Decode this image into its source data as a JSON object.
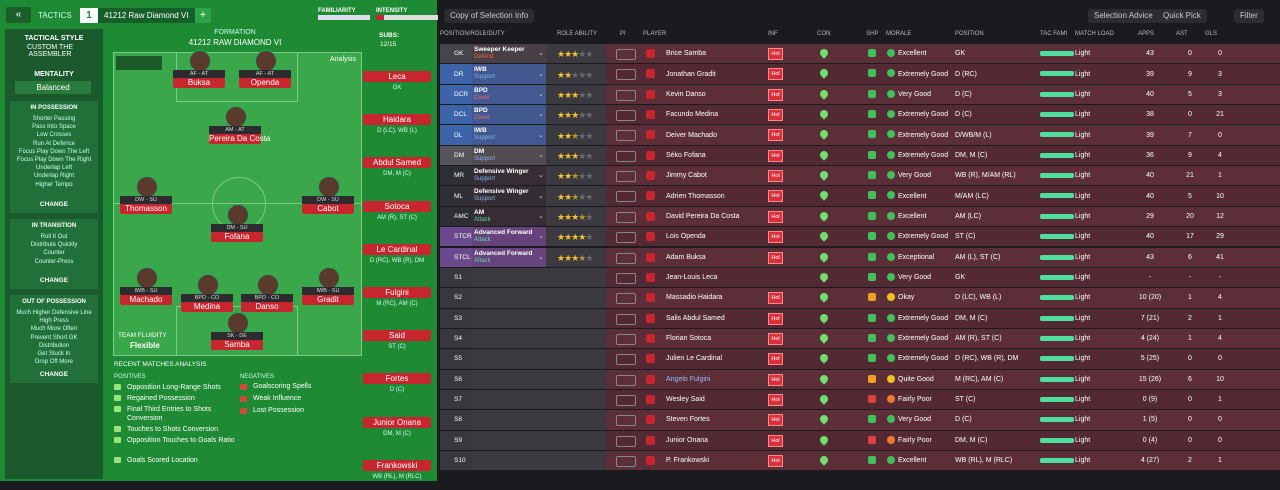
{
  "header": {
    "tactics": "TACTICS",
    "slot": "1",
    "tactic_name": "41212 Raw Diamond VI",
    "familiarity": "FAMILIARITY",
    "intensity": "INTENSITY"
  },
  "sidebar": {
    "style_label": "TACTICAL STYLE",
    "style_name": "CUSTOM THE ASSEMBLER",
    "mentality_label": "MENTALITY",
    "mentality": "Balanced",
    "in_possession": {
      "title": "IN POSSESSION",
      "items": [
        "Shorter Passing",
        "Pass Into Space",
        "Low Crosses",
        "Run At Defence",
        "Focus Play Down The Left",
        "Focus Play Down The Right",
        "Underlap Left",
        "Underlap Right",
        "Higher Tempo"
      ],
      "change": "CHANGE"
    },
    "in_transition": {
      "title": "IN TRANSITION",
      "items": [
        "Roll It Out",
        "Distribute Quickly",
        "Counter",
        "Counter-Press"
      ],
      "change": "CHANGE"
    },
    "out_of_possession": {
      "title": "OUT OF POSSESSION",
      "items": [
        "Much Higher Defensive Line",
        "High Press",
        "Much More Often",
        "Prevent Short GK",
        "Distribution",
        "Get Stuck In",
        "Drop Off More"
      ],
      "change": "CHANGE"
    }
  },
  "pitch": {
    "formation_label": "FORMATION",
    "formation_name": "41212 RAW DIAMOND VI",
    "analysis": "Analysis",
    "fluidity_label": "TEAM FLUIDITY",
    "fluidity": "Flexible",
    "players": [
      {
        "role": "AF - AT",
        "name": "Buksa"
      },
      {
        "role": "AF - AT",
        "name": "Openda"
      },
      {
        "role": "AM - AT",
        "name": "Pereira Da Costa"
      },
      {
        "role": "DW - SU",
        "name": "Thomasson"
      },
      {
        "role": "DW - SU",
        "name": "Cabot"
      },
      {
        "role": "DM - SU",
        "name": "Fofana"
      },
      {
        "role": "IWB - SU",
        "name": "Machado"
      },
      {
        "role": "BPD - CO",
        "name": "Medina"
      },
      {
        "role": "BPD - CO",
        "name": "Danso"
      },
      {
        "role": "IWB - SU",
        "name": "Gradit"
      },
      {
        "role": "SK - DE",
        "name": "Samba"
      }
    ]
  },
  "subs": {
    "label": "SUBS:",
    "count": "12/15",
    "players": [
      {
        "name": "Leca",
        "position": "GK"
      },
      {
        "name": "Haidara",
        "position": "D (LC), WB (L)"
      },
      {
        "name": "Abdul Samed",
        "position": "DM, M (C)"
      },
      {
        "name": "Sotoca",
        "position": "AM (R), ST (C)"
      },
      {
        "name": "Le Cardinal",
        "position": "D (RC), WB (R), DM"
      },
      {
        "name": "Fulgini",
        "position": "M (RC), AM (C)"
      },
      {
        "name": "Said",
        "position": "ST (C)"
      },
      {
        "name": "Fortes",
        "position": "D (C)"
      },
      {
        "name": "Junior Onana",
        "position": "DM, M (C)"
      },
      {
        "name": "Frankowski",
        "position": "WB (RL), M (RLC)"
      }
    ]
  },
  "analysis": {
    "title": "RECENT MATCHES ANALYSIS",
    "positives_label": "POSITIVES",
    "positives": [
      "Opposition Long-Range Shots",
      "Regained Possession",
      "Final Third Entries to Shots Conversion",
      "Touches to Shots Conversion",
      "Opposition Touches to Goals Ratio",
      "Goals Scored Location"
    ],
    "negatives_label": "NEGATIVES",
    "negatives": [
      "Goalscoring Spells",
      "Weak Influence",
      "Lost Possession"
    ]
  },
  "toolbar": {
    "view": "Copy of Selection Info",
    "advice": "Selection Advice",
    "quick_pick": "Quick Pick",
    "filter": "Filter"
  },
  "table": {
    "columns": [
      "POSITION/ROLE/DUTY",
      "ROLE ABILITY",
      "PI",
      "PLAYER",
      "INF",
      "CON",
      "SHP",
      "MORALE",
      "POSITION",
      "TAC FAMI",
      "MATCH LOAD",
      "APPS",
      "AST",
      "GLS"
    ],
    "rows": [
      {
        "pos": "GK",
        "role": "Sweeper Keeper",
        "duty": "Defend",
        "stars": 3,
        "player": "Brice Samba",
        "inf": "Hol",
        "morale": "Excellent",
        "position": "GK",
        "load": "Light",
        "apps": "43",
        "ast": "0",
        "gls": "0"
      },
      {
        "pos": "DR",
        "role": "IWB",
        "duty": "Support",
        "stars": 2,
        "player": "Jonathan Gradit",
        "inf": "Hol",
        "morale": "Extremely Good",
        "position": "D (RC)",
        "load": "Light",
        "apps": "39",
        "ast": "9",
        "gls": "3"
      },
      {
        "pos": "DCR",
        "role": "BPD",
        "duty": "Cover",
        "stars": 3,
        "player": "Kevin Danso",
        "inf": "Hol",
        "morale": "Very Good",
        "position": "D (C)",
        "load": "Light",
        "apps": "40",
        "ast": "5",
        "gls": "3"
      },
      {
        "pos": "DCL",
        "role": "BPD",
        "duty": "Cover",
        "stars": 3,
        "player": "Facundo Medina",
        "inf": "Hol",
        "morale": "Extremely Good",
        "position": "D (C)",
        "load": "Light",
        "apps": "38",
        "ast": "0",
        "gls": "21"
      },
      {
        "pos": "DL",
        "role": "IWB",
        "duty": "Support",
        "stars": 2.5,
        "player": "Deiver Machado",
        "inf": "Hol",
        "morale": "Extremely Good",
        "position": "D/WB/M (L)",
        "load": "Light",
        "apps": "39",
        "ast": "7",
        "gls": "0"
      },
      {
        "pos": "DM",
        "role": "DM",
        "duty": "Support",
        "stars": 3,
        "player": "Séko Fofana",
        "inf": "Hol",
        "morale": "Extremely Good",
        "position": "DM, M (C)",
        "load": "Light",
        "apps": "36",
        "ast": "9",
        "gls": "4"
      },
      {
        "pos": "MR",
        "role": "Defensive Winger",
        "duty": "Support",
        "stars": 2.5,
        "player": "Jimmy Cabot",
        "inf": "Hol",
        "morale": "Very Good",
        "position": "WB (R), M/AM (RL)",
        "load": "Light",
        "apps": "40",
        "ast": "21",
        "gls": "1"
      },
      {
        "pos": "ML",
        "role": "Defensive Winger",
        "duty": "Support",
        "stars": 2.5,
        "player": "Adrien Thomasson",
        "inf": "Hol",
        "morale": "Excellent",
        "position": "M/AM (LC)",
        "load": "Light",
        "apps": "40",
        "ast": "5",
        "gls": "10"
      },
      {
        "pos": "AMC",
        "role": "AM",
        "duty": "Attack",
        "stars": 3.5,
        "player": "David Pereira Da Costa",
        "inf": "Hol",
        "morale": "Excellent",
        "position": "AM (LC)",
        "load": "Light",
        "apps": "29",
        "ast": "20",
        "gls": "12"
      },
      {
        "pos": "STCR",
        "role": "Advanced Forward",
        "duty": "Attack",
        "stars": 4,
        "player": "Lois Openda",
        "inf": "Hol",
        "morale": "Extremely Good",
        "position": "ST (C)",
        "load": "Light",
        "apps": "40",
        "ast": "17",
        "gls": "29"
      },
      {
        "pos": "STCL",
        "role": "Advanced Forward",
        "duty": "Attack",
        "stars": 3.5,
        "player": "Adam Buksa",
        "inf": "Hol",
        "morale": "Exceptional",
        "position": "AM (L), ST (C)",
        "load": "Light",
        "apps": "43",
        "ast": "6",
        "gls": "41"
      },
      {
        "pos": "S1",
        "player": "Jean-Louis Leca",
        "morale": "Very Good",
        "position": "GK",
        "load": "Light",
        "apps": "-",
        "ast": "-",
        "gls": "-"
      },
      {
        "pos": "S2",
        "player": "Massadio Haidara",
        "inf": "Hol",
        "morale": "Okay",
        "position": "D (LC), WB (L)",
        "load": "Light",
        "apps": "10 (20)",
        "ast": "1",
        "gls": "4"
      },
      {
        "pos": "S3",
        "player": "Salis Abdul Samed",
        "inf": "Hol",
        "morale": "Extremely Good",
        "position": "DM, M (C)",
        "load": "Light",
        "apps": "7 (21)",
        "ast": "2",
        "gls": "1"
      },
      {
        "pos": "S4",
        "player": "Florian Sotoca",
        "inf": "Hol",
        "morale": "Extremely Good",
        "position": "AM (R), ST (C)",
        "load": "Light",
        "apps": "4 (24)",
        "ast": "1",
        "gls": "4"
      },
      {
        "pos": "S5",
        "player": "Julien Le Cardinal",
        "inf": "Hol",
        "morale": "Extremely Good",
        "position": "D (RC), WB (R), DM",
        "load": "Light",
        "apps": "5 (25)",
        "ast": "0",
        "gls": "0"
      },
      {
        "pos": "S6",
        "player": "Angelo Fulgini",
        "inf": "Hol",
        "morale": "Quite Good",
        "position": "M (RC), AM (C)",
        "load": "Light",
        "apps": "15 (26)",
        "ast": "6",
        "gls": "10"
      },
      {
        "pos": "S7",
        "player": "Wesley Said",
        "inf": "Hol",
        "morale": "Fairly Poor",
        "position": "ST (C)",
        "load": "Light",
        "apps": "0 (9)",
        "ast": "0",
        "gls": "1"
      },
      {
        "pos": "S8",
        "player": "Steven Fortes",
        "inf": "Hol",
        "morale": "Very Good",
        "position": "D (C)",
        "load": "Light",
        "apps": "1 (5)",
        "ast": "0",
        "gls": "0"
      },
      {
        "pos": "S9",
        "player": "Junior Onana",
        "inf": "Hol",
        "morale": "Fairly Poor",
        "position": "DM, M (C)",
        "load": "Light",
        "apps": "0 (4)",
        "ast": "0",
        "gls": "0"
      },
      {
        "pos": "S10",
        "player": "P. Frankowski",
        "inf": "Hol",
        "morale": "Excellent",
        "position": "WB (RL), M (RLC)",
        "load": "Light",
        "apps": "4 (27)",
        "ast": "2",
        "gls": "1"
      }
    ]
  }
}
